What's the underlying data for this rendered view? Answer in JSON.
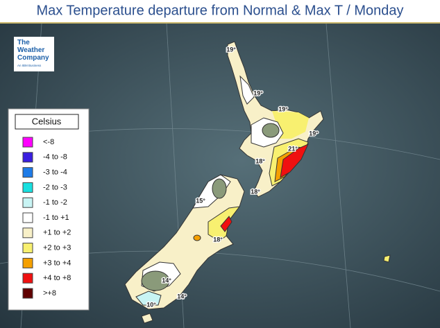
{
  "header": {
    "title": "Max Temperature departure from Normal & Max T / Monday"
  },
  "logo": {
    "line1": "The",
    "line2": "Weather",
    "line3": "Company",
    "tagline": "An IBM Business"
  },
  "legend": {
    "title": "Celsius",
    "items": [
      {
        "label": "<-8",
        "color": "#ff00ff"
      },
      {
        "label": "-4  to  -8",
        "color": "#3a1ee0"
      },
      {
        "label": "-3  to  -4",
        "color": "#1e7ce8"
      },
      {
        "label": "-2  to  -3",
        "color": "#18e0e0"
      },
      {
        "label": "-1  to  -2",
        "color": "#c8f4f4"
      },
      {
        "label": "-1  to  +1",
        "color": "#ffffff"
      },
      {
        "label": "+1  to  +2",
        "color": "#f8f0c8"
      },
      {
        "label": "+2  to  +3",
        "color": "#f8f070"
      },
      {
        "label": "+3  to  +4",
        "color": "#f5a000"
      },
      {
        "label": "+4  to  +8",
        "color": "#f01010"
      },
      {
        "label": ">+8",
        "color": "#600000"
      }
    ]
  },
  "map": {
    "labels": [
      "19°",
      "19°",
      "19°",
      "19°",
      "21°",
      "18°",
      "18°",
      "15°",
      "18°",
      "14°",
      "14°",
      "10°"
    ]
  }
}
